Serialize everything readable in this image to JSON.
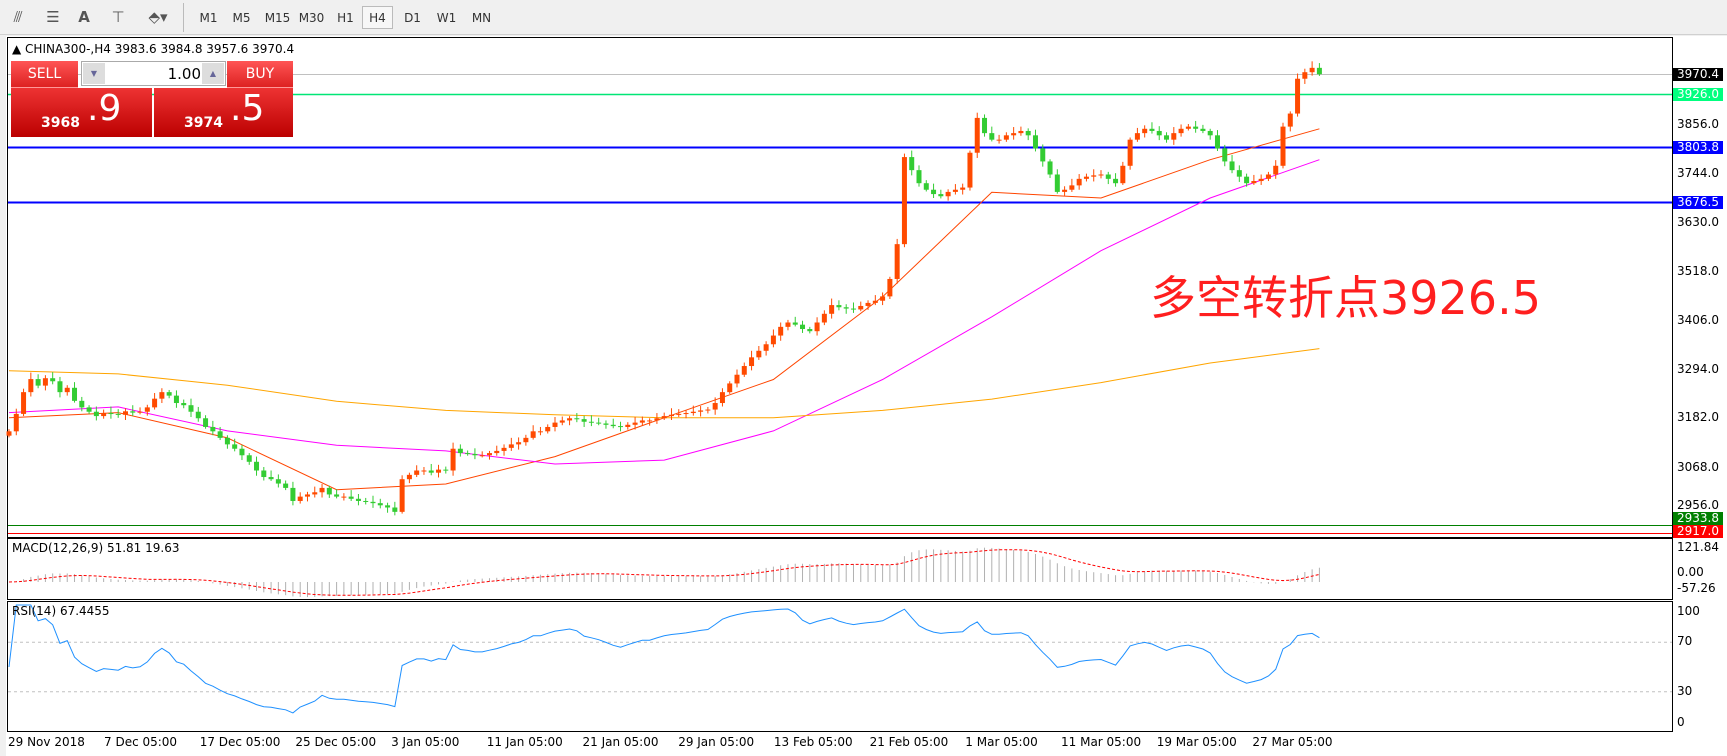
{
  "toolbar": {
    "icons": [
      "fibonacci-expansion-icon",
      "fibonacci-fan-icon",
      "text-icon",
      "text-label-icon",
      "arrows-icon"
    ],
    "text_icon_label": "A",
    "timeframes": [
      "M1",
      "M5",
      "M15",
      "M30",
      "H1",
      "H4",
      "D1",
      "W1",
      "MN"
    ],
    "active_timeframe": "H4"
  },
  "chart_header": {
    "symbol_line": "CHINA300-,H4  3983.6 3984.8 3957.6 3970.4"
  },
  "trade_panel": {
    "sell_label": "SELL",
    "buy_label": "BUY",
    "lot": "1.00",
    "sell_price_main": "3968",
    "sell_price_frac": ".9",
    "buy_price_main": "3974",
    "buy_price_frac": ".5"
  },
  "annotation": "多空转折点3926.5",
  "price_axis": [
    "3856.0",
    "3744.0",
    "3630.0",
    "3518.0",
    "3406.0",
    "3294.0",
    "3182.0",
    "3068.0",
    "2956.0"
  ],
  "price_tags": [
    {
      "label": "3970.4",
      "value": 3970.4,
      "color": "#000000",
      "line": "#c0c0c0"
    },
    {
      "label": "3926.0",
      "value": 3926.0,
      "color": "#00ff7f",
      "line": "#00e676"
    },
    {
      "label": "3803.8",
      "value": 3803.8,
      "color": "#0000ff",
      "line": "#0000ff"
    },
    {
      "label": "3676.5",
      "value": 3676.5,
      "color": "#0000ff",
      "line": "#0000ff"
    },
    {
      "label": "2933.8",
      "value": 2933.8,
      "color": "#008000",
      "line": "#008000"
    },
    {
      "label": "2917.0",
      "value": 2917.0,
      "color": "#ff0000",
      "line": "#ff0000"
    }
  ],
  "macd": {
    "label": "MACD(12,26,9) 51.81 19.63",
    "axis": [
      "121.84",
      "0.00",
      "-57.26"
    ]
  },
  "rsi": {
    "label": "RSI(14) 67.4455",
    "axis": [
      "100",
      "70",
      "30",
      "0"
    ]
  },
  "dates": [
    "29 Nov 2018",
    "7 Dec 05:00",
    "17 Dec 05:00",
    "25 Dec 05:00",
    "3 Jan 05:00",
    "11 Jan 05:00",
    "21 Jan 05:00",
    "29 Jan 05:00",
    "13 Feb 05:00",
    "21 Feb 05:00",
    "1 Mar 05:00",
    "11 Mar 05:00",
    "19 Mar 05:00",
    "27 Mar 05:00"
  ],
  "chart_data": {
    "type": "candlestick",
    "symbol": "CHINA300-",
    "timeframe": "H4",
    "ylim": [
      2900,
      4000
    ],
    "up_color": "#ff4a00",
    "down_color": "#33cc33",
    "closes": [
      3150,
      3190,
      3240,
      3270,
      3255,
      3272,
      3265,
      3240,
      3250,
      3220,
      3205,
      3195,
      3185,
      3192,
      3190,
      3188,
      3196,
      3193,
      3195,
      3205,
      3225,
      3240,
      3232,
      3215,
      3210,
      3195,
      3180,
      3160,
      3150,
      3135,
      3120,
      3110,
      3095,
      3080,
      3060,
      3045,
      3040,
      3030,
      3020,
      2990,
      3000,
      3005,
      3010,
      3020,
      3005,
      3000,
      3000,
      2995,
      2990,
      2988,
      2985,
      2980,
      2975,
      2965,
      3040,
      3050,
      3060,
      3060,
      3055,
      3062,
      3060,
      3110,
      3100,
      3098,
      3095,
      3095,
      3100,
      3105,
      3112,
      3120,
      3125,
      3135,
      3150,
      3150,
      3160,
      3170,
      3175,
      3180,
      3178,
      3172,
      3170,
      3168,
      3165,
      3162,
      3160,
      3165,
      3170,
      3175,
      3175,
      3180,
      3185,
      3188,
      3190,
      3192,
      3195,
      3198,
      3200,
      3215,
      3240,
      3260,
      3280,
      3300,
      3320,
      3335,
      3350,
      3370,
      3390,
      3400,
      3395,
      3385,
      3380,
      3400,
      3420,
      3440,
      3435,
      3432,
      3430,
      3438,
      3445,
      3450,
      3460,
      3500,
      3580,
      3780,
      3750,
      3720,
      3705,
      3695,
      3690,
      3700,
      3705,
      3710,
      3790,
      3870,
      3835,
      3820,
      3820,
      3830,
      3835,
      3840,
      3830,
      3800,
      3770,
      3740,
      3700,
      3705,
      3715,
      3730,
      3735,
      3738,
      3740,
      3730,
      3720,
      3760,
      3820,
      3835,
      3845,
      3840,
      3830,
      3820,
      3835,
      3845,
      3850,
      3845,
      3840,
      3830,
      3800,
      3770,
      3750,
      3735,
      3720,
      3725,
      3730,
      3740,
      3760,
      3850,
      3880,
      3960,
      3975,
      3985,
      3970.4
    ],
    "moving_averages": [
      {
        "color": "#ff4500",
        "sample_every_bars": 15,
        "values": [
          3181,
          3193,
          3135,
          3016,
          3029,
          3092,
          3181,
          3269,
          3459,
          3699,
          3686,
          3774,
          3845
        ]
      },
      {
        "color": "#ff00ff",
        "sample_every_bars": 15,
        "values": [
          3193,
          3206,
          3151,
          3118,
          3105,
          3075,
          3084,
          3151,
          3269,
          3413,
          3565,
          3686,
          3774
        ]
      },
      {
        "color": "#ffa500",
        "sample_every_bars": 15,
        "values": [
          3289,
          3282,
          3256,
          3219,
          3198,
          3188,
          3181,
          3181,
          3198,
          3224,
          3262,
          3307,
          3340
        ]
      }
    ]
  }
}
